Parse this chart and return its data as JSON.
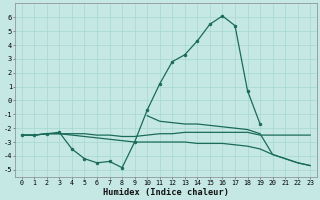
{
  "xlabel": "Humidex (Indice chaleur)",
  "bg_color": "#c5e8e4",
  "grid_color": "#a8d8d4",
  "line_color": "#1a6b5a",
  "x_values": [
    0,
    1,
    2,
    3,
    4,
    5,
    6,
    7,
    8,
    9,
    10,
    11,
    12,
    13,
    14,
    15,
    16,
    17,
    18,
    19,
    20,
    21,
    22,
    23
  ],
  "line_peak_y": [
    -2.5,
    -2.5,
    -2.4,
    -2.3,
    -3.5,
    -4.2,
    -4.5,
    -4.4,
    -4.85,
    -3.0,
    -0.7,
    1.2,
    2.8,
    3.3,
    4.3,
    5.5,
    6.1,
    5.4,
    0.7,
    -1.7,
    null,
    null,
    null,
    null
  ],
  "line_flat_y": [
    -2.5,
    -2.5,
    -2.4,
    -2.4,
    -2.4,
    -2.4,
    -2.5,
    -2.5,
    -2.6,
    -2.6,
    -2.5,
    -2.4,
    -2.4,
    -2.3,
    -2.3,
    -2.3,
    -2.3,
    -2.3,
    -2.3,
    -2.5,
    -2.5,
    -2.5,
    -2.5,
    -2.5
  ],
  "line_decline_y": [
    -2.5,
    -2.5,
    -2.4,
    -2.4,
    -2.5,
    -2.6,
    -2.7,
    -2.8,
    -2.9,
    -3.0,
    -3.0,
    -3.0,
    -3.0,
    -3.0,
    -3.1,
    -3.1,
    -3.1,
    -3.2,
    -3.3,
    -3.5,
    -3.9,
    -4.2,
    -4.5,
    -4.7
  ],
  "line_mid_y": [
    null,
    null,
    null,
    null,
    null,
    null,
    null,
    null,
    null,
    null,
    -1.1,
    -1.5,
    -1.6,
    -1.7,
    -1.7,
    -1.8,
    -1.9,
    -2.0,
    -2.1,
    -2.4,
    -3.9,
    -4.2,
    -4.5,
    -4.7
  ],
  "ylim": [
    -5.5,
    7.0
  ],
  "xlim": [
    -0.5,
    23.5
  ],
  "yticks": [
    -5,
    -4,
    -3,
    -2,
    -1,
    0,
    1,
    2,
    3,
    4,
    5,
    6
  ],
  "xticks": [
    0,
    1,
    2,
    3,
    4,
    5,
    6,
    7,
    8,
    9,
    10,
    11,
    12,
    13,
    14,
    15,
    16,
    17,
    18,
    19,
    20,
    21,
    22,
    23
  ]
}
